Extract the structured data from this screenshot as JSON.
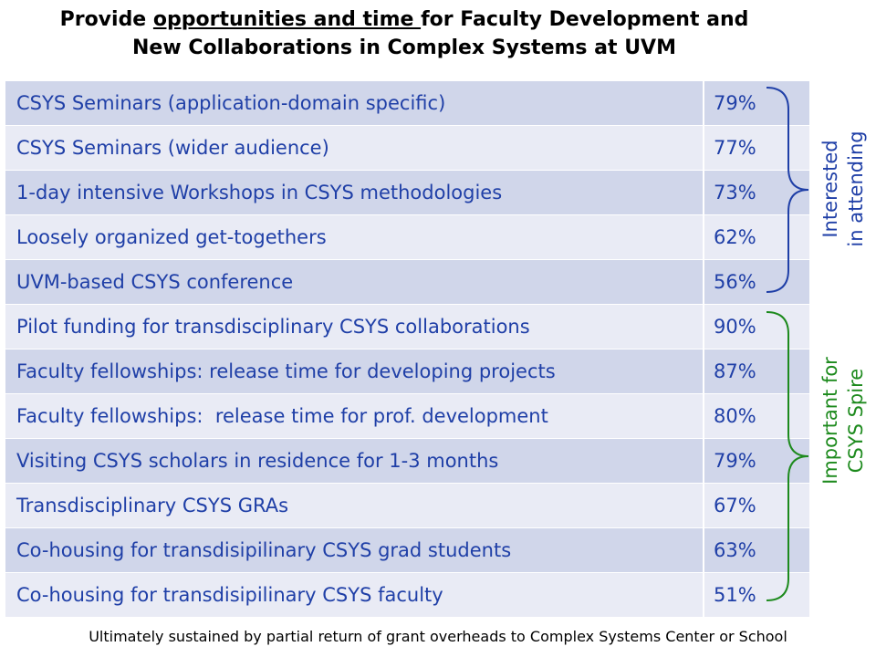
{
  "title": {
    "line1_pre": "Provide ",
    "line1_underline": "opportunities and time ",
    "line1_post": "for Faculty Development and",
    "line2": "New Collaborations in Complex Systems at UVM"
  },
  "rows": [
    {
      "item": "CSYS Seminars (application-domain specific)",
      "pct": "79%"
    },
    {
      "item": "CSYS Seminars (wider audience)",
      "pct": "77%"
    },
    {
      "item": "1-day intensive Workshops in CSYS methodologies",
      "pct": "73%"
    },
    {
      "item": "Loosely organized get-togethers",
      "pct": "62%"
    },
    {
      "item": "UVM-based CSYS conference",
      "pct": "56%"
    },
    {
      "item": "Pilot funding for transdisciplinary CSYS collaborations",
      "pct": "90%"
    },
    {
      "item": "Faculty fellowships: release time for developing projects",
      "pct": "87%"
    },
    {
      "item": "Faculty fellowships:  release time for prof. development",
      "pct": "80%"
    },
    {
      "item": "Visiting CSYS scholars in residence for 1-3 months",
      "pct": "79%"
    },
    {
      "item": "Transdisciplinary CSYS GRAs",
      "pct": "67%"
    },
    {
      "item": "Co-housing for transdisipilinary CSYS grad students",
      "pct": "63%"
    },
    {
      "item": "Co-housing for transdisipilinary CSYS faculty",
      "pct": "51%"
    }
  ],
  "groups": {
    "interested": {
      "line1": "Interested",
      "line2": "in attending",
      "color": "#1f3fa7"
    },
    "important": {
      "line1": "Important for",
      "line2": "CSYS Spire",
      "color": "#1d8a1d"
    }
  },
  "footer": "Ultimately sustained by partial return of grant overheads to Complex Systems Center or School"
}
